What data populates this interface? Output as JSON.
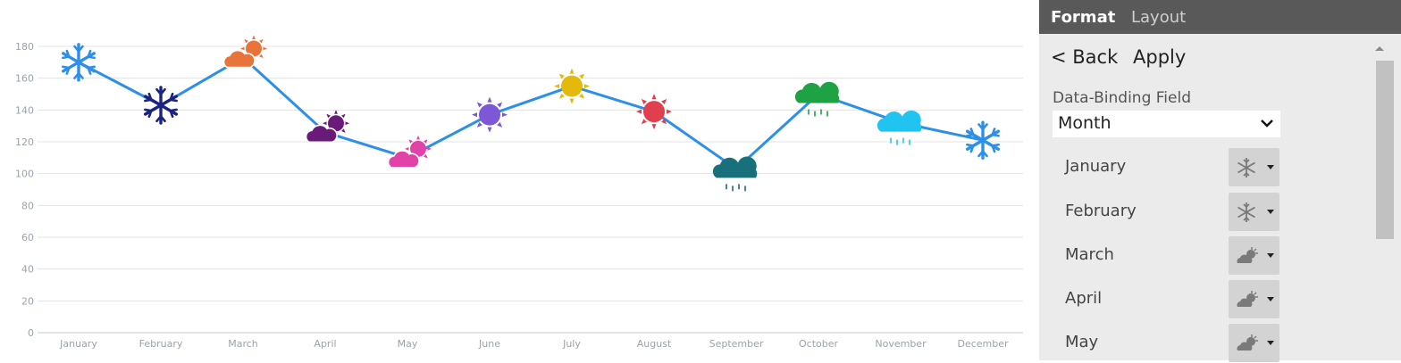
{
  "panel": {
    "tabs": {
      "format": "Format",
      "layout": "Layout"
    },
    "back_label": "< Back",
    "apply_label": "Apply",
    "field_label": "Data-Binding Field",
    "field_value": "Month",
    "rows": [
      {
        "label": "January",
        "icon": "snowflake-icon"
      },
      {
        "label": "February",
        "icon": "snowflake-icon"
      },
      {
        "label": "March",
        "icon": "partly-cloudy-icon"
      },
      {
        "label": "April",
        "icon": "partly-cloudy-icon"
      },
      {
        "label": "May",
        "icon": "partly-cloudy-icon"
      }
    ]
  },
  "chart_data": {
    "type": "line",
    "categories": [
      "January",
      "February",
      "March",
      "April",
      "May",
      "June",
      "July",
      "August",
      "September",
      "October",
      "November",
      "December"
    ],
    "series": [
      {
        "values": [
          170,
          143,
          173,
          126,
          110,
          137,
          155,
          139,
          103,
          150,
          132,
          121
        ]
      }
    ],
    "markers": [
      {
        "icon": "snowflake-icon",
        "color": "#2d8fe8"
      },
      {
        "icon": "snowflake-icon",
        "color": "#1a237e"
      },
      {
        "icon": "partly-cloudy-icon",
        "color": "#e8743b"
      },
      {
        "icon": "partly-cloudy-icon",
        "color": "#6a1b7a"
      },
      {
        "icon": "partly-cloudy-icon",
        "color": "#e042a8"
      },
      {
        "icon": "sun-icon",
        "color": "#7c57d6"
      },
      {
        "icon": "sun-icon",
        "color": "#e4b90c"
      },
      {
        "icon": "sun-icon",
        "color": "#e0404d"
      },
      {
        "icon": "rain-cloud-icon",
        "color": "#17707a"
      },
      {
        "icon": "rain-cloud-icon",
        "color": "#1fa244"
      },
      {
        "icon": "rain-cloud-icon",
        "color": "#21c4f0"
      },
      {
        "icon": "snowflake-icon",
        "color": "#2d8fe8"
      }
    ],
    "y_ticks": [
      "0",
      "20",
      "40",
      "60",
      "80",
      "100",
      "120",
      "140",
      "160",
      "180"
    ],
    "ylim": [
      0,
      180
    ],
    "line_color": "#2d8fe8",
    "grid": true,
    "legend": false
  }
}
